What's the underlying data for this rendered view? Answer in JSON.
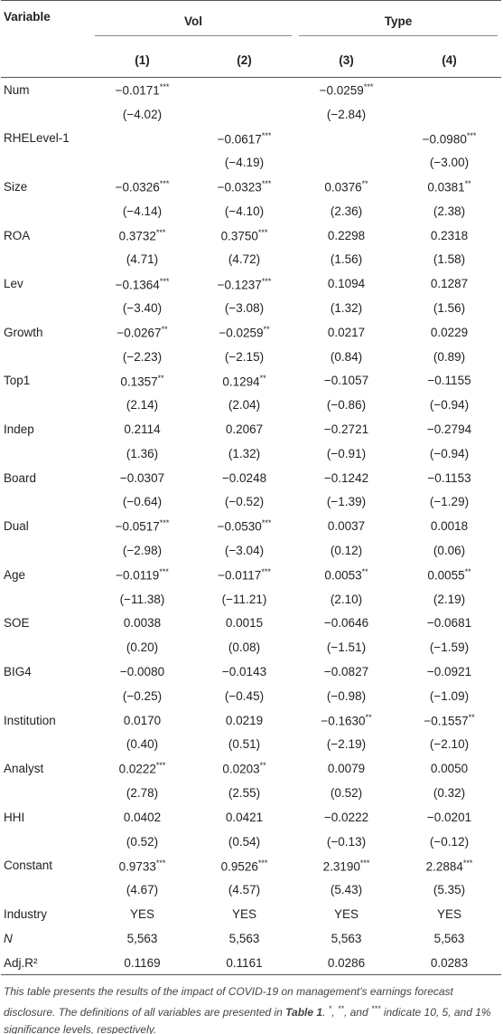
{
  "header": {
    "variable": "Variable",
    "groups": [
      "Vol",
      "Type"
    ],
    "columns": [
      "(1)",
      "(2)",
      "(3)",
      "(4)"
    ]
  },
  "rows": [
    {
      "label": "Num",
      "cells": [
        {
          "text": "−0.0171",
          "stars": "***"
        },
        null,
        {
          "text": "−0.0259",
          "stars": "***"
        },
        null
      ]
    },
    {
      "label": null,
      "cells": [
        "(−4.02)",
        null,
        "(−2.84)",
        null
      ]
    },
    {
      "label": "RHELevel-1",
      "cells": [
        null,
        {
          "text": "−0.0617",
          "stars": "***"
        },
        null,
        {
          "text": "−0.0980",
          "stars": "***"
        }
      ]
    },
    {
      "label": null,
      "cells": [
        null,
        "(−4.19)",
        null,
        "(−3.00)"
      ]
    },
    {
      "label": "Size",
      "cells": [
        {
          "text": "−0.0326",
          "stars": "***"
        },
        {
          "text": "−0.0323",
          "stars": "***"
        },
        {
          "text": "0.0376",
          "stars": "**"
        },
        {
          "text": "0.0381",
          "stars": "**"
        }
      ]
    },
    {
      "label": null,
      "cells": [
        "(−4.14)",
        "(−4.10)",
        "(2.36)",
        "(2.38)"
      ]
    },
    {
      "label": "ROA",
      "cells": [
        {
          "text": "0.3732",
          "stars": "***"
        },
        {
          "text": "0.3750",
          "stars": "***"
        },
        "0.2298",
        "0.2318"
      ]
    },
    {
      "label": null,
      "cells": [
        "(4.71)",
        "(4.72)",
        "(1.56)",
        "(1.58)"
      ]
    },
    {
      "label": "Lev",
      "cells": [
        {
          "text": "−0.1364",
          "stars": "***"
        },
        {
          "text": "−0.1237",
          "stars": "***"
        },
        "0.1094",
        "0.1287"
      ]
    },
    {
      "label": null,
      "cells": [
        "(−3.40)",
        "(−3.08)",
        "(1.32)",
        "(1.56)"
      ]
    },
    {
      "label": "Growth",
      "cells": [
        {
          "text": "−0.0267",
          "stars": "**"
        },
        {
          "text": "−0.0259",
          "stars": "**"
        },
        "0.0217",
        "0.0229"
      ]
    },
    {
      "label": null,
      "cells": [
        "(−2.23)",
        "(−2.15)",
        "(0.84)",
        "(0.89)"
      ]
    },
    {
      "label": "Top1",
      "cells": [
        {
          "text": "0.1357",
          "stars": "**"
        },
        {
          "text": "0.1294",
          "stars": "**"
        },
        "−0.1057",
        "−0.1155"
      ]
    },
    {
      "label": null,
      "cells": [
        "(2.14)",
        "(2.04)",
        "(−0.86)",
        "(−0.94)"
      ]
    },
    {
      "label": "Indep",
      "cells": [
        "0.2114",
        "0.2067",
        "−0.2721",
        "−0.2794"
      ]
    },
    {
      "label": null,
      "cells": [
        "(1.36)",
        "(1.32)",
        "(−0.91)",
        "(−0.94)"
      ]
    },
    {
      "label": "Board",
      "cells": [
        "−0.0307",
        "−0.0248",
        "−0.1242",
        "−0.1153"
      ]
    },
    {
      "label": null,
      "cells": [
        "(−0.64)",
        "(−0.52)",
        "(−1.39)",
        "(−1.29)"
      ]
    },
    {
      "label": "Dual",
      "cells": [
        {
          "text": "−0.0517",
          "stars": "***"
        },
        {
          "text": "−0.0530",
          "stars": "***"
        },
        "0.0037",
        "0.0018"
      ]
    },
    {
      "label": null,
      "cells": [
        "(−2.98)",
        "(−3.04)",
        "(0.12)",
        "(0.06)"
      ]
    },
    {
      "label": "Age",
      "cells": [
        {
          "text": "−0.0119",
          "stars": "***"
        },
        {
          "text": "−0.0117",
          "stars": "***"
        },
        {
          "text": "0.0053",
          "stars": "**"
        },
        {
          "text": "0.0055",
          "stars": "**"
        }
      ]
    },
    {
      "label": null,
      "cells": [
        "(−11.38)",
        "(−11.21)",
        "(2.10)",
        "(2.19)"
      ]
    },
    {
      "label": "SOE",
      "cells": [
        "0.0038",
        "0.0015",
        "−0.0646",
        "−0.0681"
      ]
    },
    {
      "label": null,
      "cells": [
        "(0.20)",
        "(0.08)",
        "(−1.51)",
        "(−1.59)"
      ]
    },
    {
      "label": "BIG4",
      "cells": [
        "−0.0080",
        "−0.0143",
        "−0.0827",
        "−0.0921"
      ]
    },
    {
      "label": null,
      "cells": [
        "(−0.25)",
        "(−0.45)",
        "(−0.98)",
        "(−1.09)"
      ]
    },
    {
      "label": "Institution",
      "cells": [
        "0.0170",
        "0.0219",
        {
          "text": "−0.1630",
          "stars": "**"
        },
        {
          "text": "−0.1557",
          "stars": "**"
        }
      ]
    },
    {
      "label": null,
      "cells": [
        "(0.40)",
        "(0.51)",
        "(−2.19)",
        "(−2.10)"
      ]
    },
    {
      "label": "Analyst",
      "cells": [
        {
          "text": "0.0222",
          "stars": "***"
        },
        {
          "text": "0.0203",
          "stars": "**"
        },
        "0.0079",
        "0.0050"
      ]
    },
    {
      "label": null,
      "cells": [
        "(2.78)",
        "(2.55)",
        "(0.52)",
        "(0.32)"
      ]
    },
    {
      "label": "HHI",
      "cells": [
        "0.0402",
        "0.0421",
        "−0.0222",
        "−0.0201"
      ]
    },
    {
      "label": null,
      "cells": [
        "(0.52)",
        "(0.54)",
        "(−0.13)",
        "(−0.12)"
      ]
    },
    {
      "label": "Constant",
      "cells": [
        {
          "text": "0.9733",
          "stars": "***"
        },
        {
          "text": "0.9526",
          "stars": "***"
        },
        {
          "text": "2.3190",
          "stars": "***"
        },
        {
          "text": "2.2884",
          "stars": "***"
        }
      ]
    },
    {
      "label": null,
      "cells": [
        "(4.67)",
        "(4.57)",
        "(5.43)",
        "(5.35)"
      ]
    },
    {
      "label": "Industry",
      "cells": [
        "YES",
        "YES",
        "YES",
        "YES"
      ]
    },
    {
      "label": "N",
      "style": "italic",
      "cells": [
        "5,563",
        "5,563",
        "5,563",
        "5,563"
      ]
    },
    {
      "label": "Adj.R²",
      "cells": [
        "0.1169",
        "0.1161",
        "0.0286",
        "0.0283"
      ]
    }
  ],
  "footnote": [
    "This table presents the results of the impact of COVID-19 on management's earnings forecast disclosure. The definitions of all variables are presented in ",
    "Table 1",
    ". ",
    "*",
    ", ",
    "**",
    ", and ",
    "***",
    " indicate 10, 5, and 1% significance levels, respectively."
  ]
}
